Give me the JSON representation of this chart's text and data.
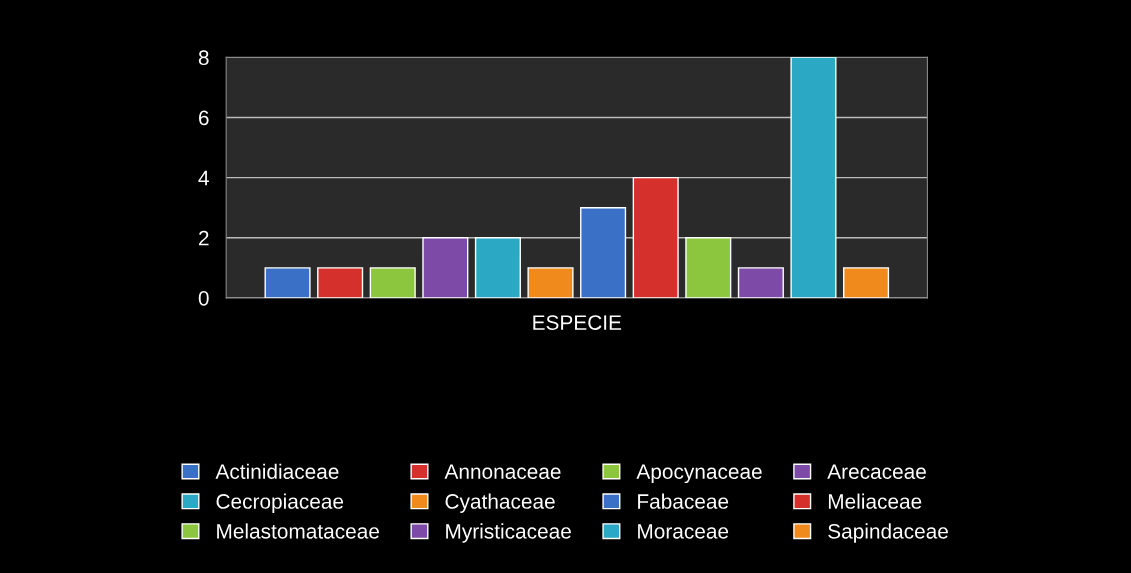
{
  "chart_data": {
    "type": "bar",
    "categories": [
      "ESPECIE"
    ],
    "series": [
      {
        "name": "Actinidiaceae",
        "color": "#3a70c6",
        "values": [
          1
        ]
      },
      {
        "name": "Annonaceae",
        "color": "#d6302c",
        "values": [
          1
        ]
      },
      {
        "name": "Apocynaceae",
        "color": "#8cc63e",
        "values": [
          1
        ]
      },
      {
        "name": "Arecaceae",
        "color": "#7e4aa8",
        "values": [
          2
        ]
      },
      {
        "name": "Cecropiaceae",
        "color": "#2aa8c4",
        "values": [
          2
        ]
      },
      {
        "name": "Cyathaceae",
        "color": "#f08a1c",
        "values": [
          1
        ]
      },
      {
        "name": "Fabaceae",
        "color": "#3a70c6",
        "values": [
          3
        ]
      },
      {
        "name": "Meliaceae",
        "color": "#d6302c",
        "values": [
          4
        ]
      },
      {
        "name": "Melastomataceae",
        "color": "#8cc63e",
        "values": [
          2
        ]
      },
      {
        "name": "Myristicaceae",
        "color": "#7e4aa8",
        "values": [
          1
        ]
      },
      {
        "name": "Moraceae",
        "color": "#2aa8c4",
        "values": [
          8
        ]
      },
      {
        "name": "Sapindaceae",
        "color": "#f08a1c",
        "values": [
          1
        ]
      }
    ],
    "ylim": [
      0,
      8
    ],
    "yticks": [
      0,
      2,
      4,
      6,
      8
    ],
    "grid": "y",
    "legend": "bottom"
  }
}
